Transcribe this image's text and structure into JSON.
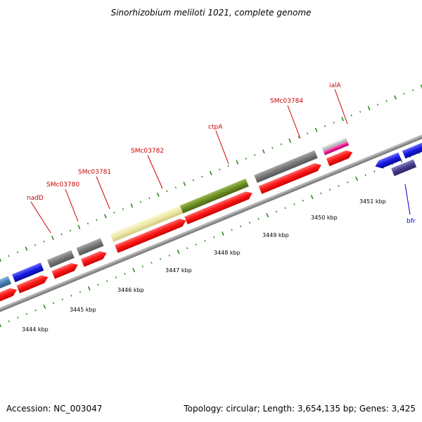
{
  "title": "Sinorhizobium meliloti 1021, complete genome",
  "footer": {
    "accession": "Accession: NC_003047",
    "topology": "Topology: circular; Length: 3,654,135 bp; Genes: 3,425"
  },
  "scale": {
    "unit": "kbp",
    "labels": [
      "3444 kbp",
      "3445 kbp",
      "3446 kbp",
      "3447 kbp",
      "3448 kbp",
      "3449 kbp",
      "3450 kbp",
      "3451 kbp"
    ]
  },
  "genes": [
    {
      "id": "nadD",
      "label": "nadD",
      "label_color": "#cc0000",
      "feature_color": "#1818e0",
      "strand": "forward"
    },
    {
      "id": "SMc03780",
      "label": "SMc03780",
      "label_color": "#cc0000",
      "feature_color": "#777777",
      "strand": "forward"
    },
    {
      "id": "SMc03781",
      "label": "SMc03781",
      "label_color": "#cc0000",
      "feature_color": "#777777",
      "strand": "forward"
    },
    {
      "id": "SMc03782",
      "label": "SMc03782",
      "label_color": "#cc0000",
      "feature_color": "#eee8a8",
      "strand": "forward"
    },
    {
      "id": "ctpA",
      "label": "ctpA",
      "label_color": "#cc0000",
      "feature_color": "#6b8e23",
      "strand": "forward"
    },
    {
      "id": "SMc03784",
      "label": "SMc03784",
      "label_color": "#cc0000",
      "feature_color": "#707070",
      "strand": "forward"
    },
    {
      "id": "ialA",
      "label": "ialA",
      "label_color": "#cc0000",
      "feature_color": "#ee1493",
      "strand": "forward"
    },
    {
      "id": "bfr",
      "label": "bfr",
      "label_color": "#0000cc",
      "feature_color": "#483d8b",
      "strand": "reverse"
    }
  ],
  "colors": {
    "cds_track": "#ff1a1a",
    "backbone": "#9a9a9a",
    "gc_ticks": "#2e8b20",
    "unlabeled_forward": "#4682b4",
    "unlabeled_blue": "#1818e0",
    "light_gray": "#c8c8c8"
  }
}
